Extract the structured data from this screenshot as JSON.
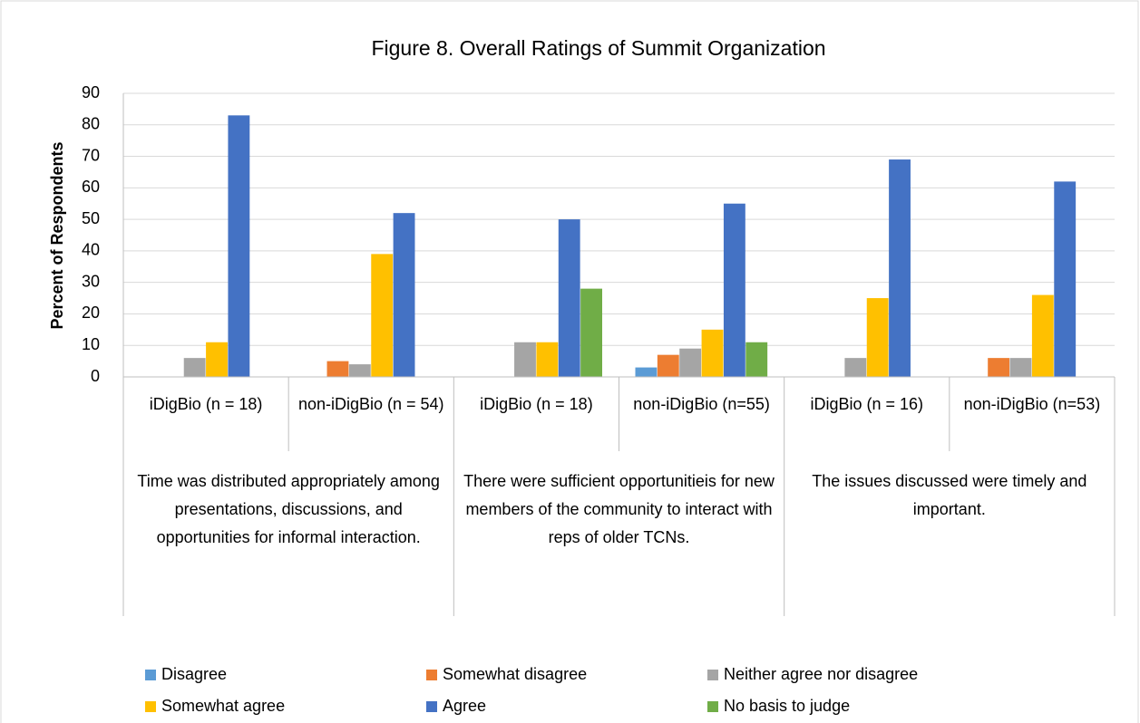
{
  "chart_data": {
    "type": "bar",
    "title": "Figure 8. Overall Ratings of Summit Organization",
    "y_label": "Percent of Respondents",
    "categories": [
      "iDigBio (n = 18)",
      "non-iDigBio (n = 54)",
      "iDigBio (n = 18)",
      "non-iDigBio (n=55)",
      "iDigBio (n = 16)",
      "non-iDigBio (n=53)"
    ],
    "category_groups": [
      "Time was distributed appropriately among presentations, discussions, and opportunities for informal interaction.",
      "There were sufficient opportunitieis for new members of the community to interact with reps of older TCNs.",
      "The issues discussed were timely and important."
    ],
    "series": [
      {
        "name": "Disagree",
        "color": "#5b9bd5",
        "values": [
          0,
          0,
          0,
          3,
          0,
          0
        ]
      },
      {
        "name": "Somewhat disagree",
        "color": "#ed7d31",
        "values": [
          0,
          5,
          0,
          7,
          0,
          6
        ]
      },
      {
        "name": "Neither agree nor disagree",
        "color": "#a5a5a5",
        "values": [
          6,
          4,
          11,
          9,
          6,
          6
        ]
      },
      {
        "name": "Somewhat agree",
        "color": "#ffc000",
        "values": [
          11,
          39,
          11,
          15,
          25,
          26
        ]
      },
      {
        "name": "Agree",
        "color": "#4472c4",
        "values": [
          83,
          52,
          50,
          55,
          69,
          62
        ]
      },
      {
        "name": "No basis to judge",
        "color": "#70ad47",
        "values": [
          0,
          0,
          28,
          11,
          0,
          0
        ]
      }
    ],
    "ylim": [
      0,
      90
    ],
    "yticks": [
      0,
      10,
      20,
      30,
      40,
      50,
      60,
      70,
      80,
      90
    ],
    "grid": true,
    "legend": "bottom"
  }
}
